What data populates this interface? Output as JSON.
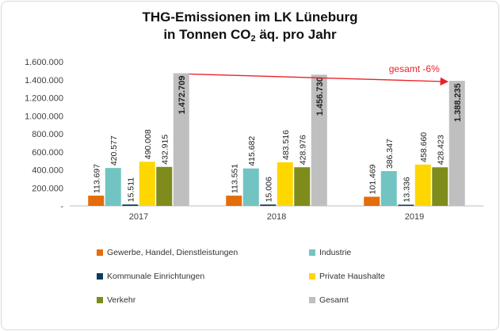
{
  "chart_data": {
    "type": "bar",
    "title_line1": "THG-Emissionen im LK Lüneburg",
    "title_line2_pre": "in Tonnen CO",
    "title_line2_sub": "2",
    "title_line2_post": " äq. pro Jahr",
    "categories": [
      "2017",
      "2018",
      "2019"
    ],
    "ylim": [
      0,
      1600000
    ],
    "yticks": [
      0,
      200000,
      400000,
      600000,
      800000,
      1000000,
      1200000,
      1400000,
      1600000
    ],
    "ytick_labels": [
      "-",
      "200.000",
      "400.000",
      "600.000",
      "800.000",
      "1.000.000",
      "1.200.000",
      "1.400.000",
      "1.600.000"
    ],
    "grid": false,
    "legend_position": "bottom",
    "series": [
      {
        "name": "Gewerbe, Handel, Dienstleistungen",
        "color": "#e46c0a",
        "values": [
          113697,
          113551,
          101469
        ],
        "labels": [
          "113.697",
          "113.551",
          "101.469"
        ],
        "bold": false
      },
      {
        "name": "Industrie",
        "color": "#71c4c1",
        "values": [
          420577,
          415682,
          386347
        ],
        "labels": [
          "420.577",
          "415.682",
          "386.347"
        ],
        "bold": false
      },
      {
        "name": "Kommunale Einrichtungen",
        "color": "#0b3d5c",
        "values": [
          15511,
          15006,
          13336
        ],
        "labels": [
          "15.511",
          "15.006",
          "13.336"
        ],
        "bold": false
      },
      {
        "name": "Private Haushalte",
        "color": "#ffd700",
        "values": [
          490008,
          483516,
          458660
        ],
        "labels": [
          "490.008",
          "483.516",
          "458.660"
        ],
        "bold": false
      },
      {
        "name": "Verkehr",
        "color": "#7f8c1c",
        "values": [
          432915,
          428976,
          428423
        ],
        "labels": [
          "432.915",
          "428.976",
          "428.423"
        ],
        "bold": false
      },
      {
        "name": "Gesamt",
        "color": "#bfbfbf",
        "values": [
          1472709,
          1456730,
          1388235
        ],
        "labels": [
          "1.472.709",
          "1.456.730",
          "1.388.235"
        ],
        "bold": true
      }
    ],
    "annotation": {
      "text": "gesamt -6%",
      "color": "#e8232a"
    }
  }
}
